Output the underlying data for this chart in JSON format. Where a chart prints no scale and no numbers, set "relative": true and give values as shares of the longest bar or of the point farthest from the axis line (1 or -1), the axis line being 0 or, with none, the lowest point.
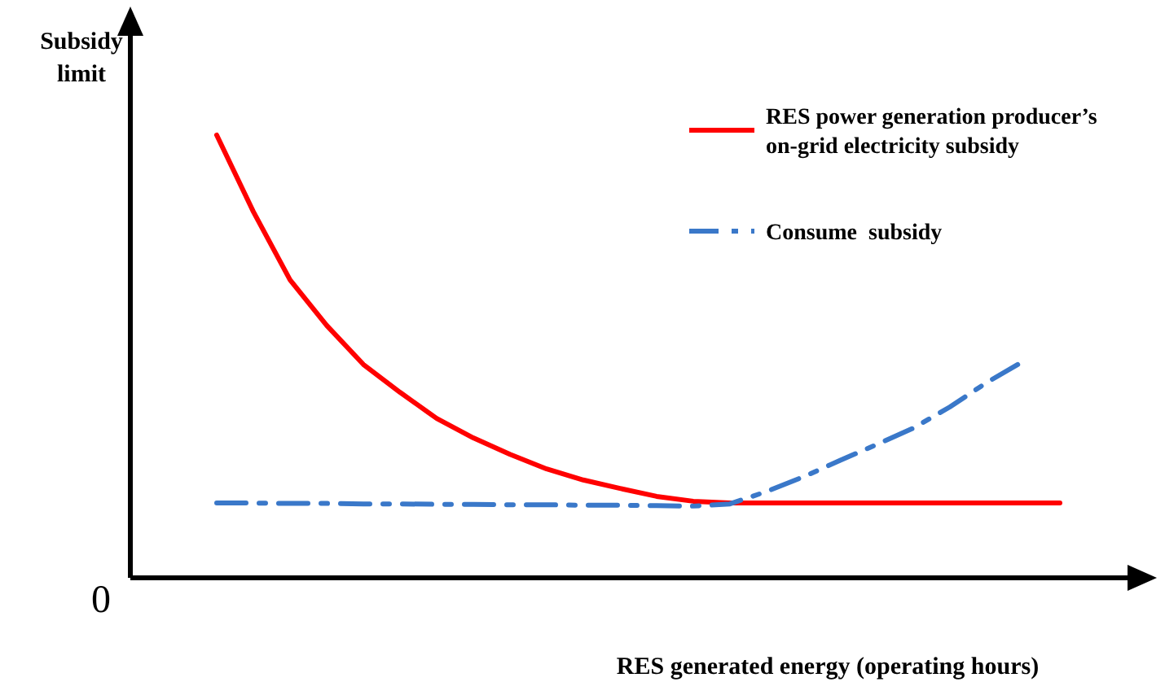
{
  "chart_data": {
    "type": "line",
    "relative": true,
    "xlabel": "RES generated energy (operating hours)",
    "ylabel": "Subsidy limit",
    "legend": "top right",
    "annotations": [
      "0"
    ],
    "categories": [
      null,
      null,
      null,
      null,
      null,
      null,
      null,
      null,
      null,
      null,
      null,
      null,
      null,
      null,
      null,
      null,
      null,
      null,
      null,
      null,
      null,
      null,
      null,
      null
    ],
    "series": [
      {
        "name": "RES power generation producer’s on-grid electricity subsidy",
        "color": "#ff0000",
        "line_style": "solid",
        "values": [
          1.0,
          0.827,
          0.673,
          0.57,
          0.482,
          0.419,
          0.36,
          0.316,
          0.279,
          0.246,
          0.221,
          0.202,
          0.184,
          0.173,
          0.169,
          0.169,
          0.169,
          0.169,
          0.169,
          0.169,
          0.169,
          0.169,
          0.169,
          0.169
        ]
      },
      {
        "name": "Consume  subsidy",
        "color": "#3a78c9",
        "line_style": "dashed",
        "values": [
          0.169,
          0.169,
          0.168,
          0.168,
          0.167,
          0.167,
          0.166,
          0.166,
          0.165,
          0.165,
          0.164,
          0.164,
          0.163,
          0.162,
          0.167,
          0.195,
          0.228,
          0.265,
          0.301,
          0.338,
          0.386,
          0.441,
          0.489,
          null
        ]
      }
    ]
  }
}
